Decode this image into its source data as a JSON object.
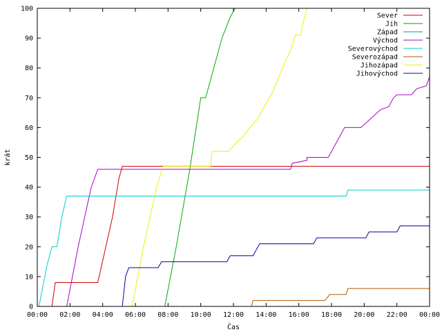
{
  "chart_data": {
    "type": "line",
    "xlabel": "Čas",
    "ylabel": "krát",
    "xlim": [
      0,
      24
    ],
    "ylim": [
      0,
      100
    ],
    "x_tick_values": [
      0,
      2,
      4,
      6,
      8,
      10,
      12,
      14,
      16,
      18,
      20,
      22,
      24
    ],
    "x_tick_labels": [
      "00:00",
      "02:00",
      "04:00",
      "06:00",
      "08:00",
      "10:00",
      "12:00",
      "14:00",
      "16:00",
      "18:00",
      "20:00",
      "22:00",
      "00:00"
    ],
    "y_tick_values": [
      0,
      10,
      20,
      30,
      40,
      50,
      60,
      70,
      80,
      90,
      100
    ],
    "y_tick_labels": [
      "0",
      "10",
      "20",
      "30",
      "40",
      "50",
      "60",
      "70",
      "80",
      "90",
      "100"
    ],
    "grid": false,
    "legend_position": "top-right",
    "series": [
      {
        "name": "Sever",
        "color": "#cc0000",
        "points": [
          [
            0.9,
            0
          ],
          [
            1.1,
            8
          ],
          [
            3.7,
            8
          ],
          [
            4.6,
            30
          ],
          [
            5.0,
            43
          ],
          [
            5.2,
            47
          ],
          [
            24,
            47
          ]
        ]
      },
      {
        "name": "Jih",
        "color": "#00aa00",
        "points": [
          [
            7.8,
            0
          ],
          [
            8.5,
            20
          ],
          [
            9.3,
            45
          ],
          [
            10.0,
            70
          ],
          [
            10.3,
            70
          ],
          [
            10.8,
            80
          ],
          [
            11.3,
            90
          ],
          [
            11.8,
            97
          ],
          [
            12.1,
            100
          ]
        ]
      },
      {
        "name": "Západ",
        "color": "#009999",
        "points": []
      },
      {
        "name": "Východ",
        "color": "#aa00cc",
        "points": [
          [
            1.8,
            0
          ],
          [
            2.5,
            20
          ],
          [
            3.3,
            40
          ],
          [
            3.7,
            46
          ],
          [
            15.5,
            46
          ],
          [
            15.6,
            48
          ],
          [
            16.5,
            49
          ],
          [
            16.5,
            50
          ],
          [
            17.8,
            50
          ],
          [
            18.1,
            53
          ],
          [
            18.4,
            56
          ],
          [
            18.8,
            60
          ],
          [
            19.8,
            60
          ],
          [
            20.2,
            62
          ],
          [
            20.6,
            64
          ],
          [
            21.0,
            66
          ],
          [
            21.5,
            67
          ],
          [
            21.8,
            70
          ],
          [
            22.0,
            71
          ],
          [
            22.9,
            71
          ],
          [
            23.2,
            73
          ],
          [
            23.8,
            74
          ],
          [
            24,
            77
          ]
        ]
      },
      {
        "name": "Severovýchod",
        "color": "#00cccc",
        "points": [
          [
            0.1,
            0
          ],
          [
            0.6,
            14
          ],
          [
            0.9,
            20
          ],
          [
            1.2,
            20
          ],
          [
            1.5,
            30
          ],
          [
            1.8,
            37
          ],
          [
            18.9,
            37
          ],
          [
            19.0,
            39
          ],
          [
            24,
            39
          ]
        ]
      },
      {
        "name": "Severozápad",
        "color": "#b35900",
        "points": [
          [
            13.1,
            0
          ],
          [
            13.2,
            2
          ],
          [
            17.6,
            2
          ],
          [
            17.9,
            4
          ],
          [
            18.9,
            4
          ],
          [
            19.0,
            6
          ],
          [
            24,
            6
          ]
        ]
      },
      {
        "name": "Jihozápad",
        "color": "#eeee00",
        "points": [
          [
            5.8,
            0
          ],
          [
            6.5,
            20
          ],
          [
            7.3,
            40
          ],
          [
            7.7,
            47
          ],
          [
            10.6,
            47
          ],
          [
            10.7,
            52
          ],
          [
            11.7,
            52
          ],
          [
            12.2,
            55
          ],
          [
            12.6,
            57
          ],
          [
            13.0,
            60
          ],
          [
            13.5,
            63
          ],
          [
            14.0,
            68
          ],
          [
            14.5,
            73
          ],
          [
            15.0,
            80
          ],
          [
            15.5,
            86
          ],
          [
            15.8,
            91
          ],
          [
            16.1,
            91
          ],
          [
            16.3,
            96
          ],
          [
            16.5,
            100
          ]
        ]
      },
      {
        "name": "Jihovýchod",
        "color": "#0000aa",
        "points": [
          [
            5.2,
            0
          ],
          [
            5.4,
            10
          ],
          [
            5.6,
            13
          ],
          [
            7.4,
            13
          ],
          [
            7.6,
            15
          ],
          [
            11.6,
            15
          ],
          [
            11.8,
            17
          ],
          [
            13.2,
            17
          ],
          [
            13.4,
            19
          ],
          [
            13.6,
            21
          ],
          [
            16.9,
            21
          ],
          [
            17.1,
            23
          ],
          [
            20.1,
            23
          ],
          [
            20.3,
            25
          ],
          [
            22.0,
            25
          ],
          [
            22.2,
            27
          ],
          [
            24,
            27
          ]
        ]
      }
    ]
  }
}
